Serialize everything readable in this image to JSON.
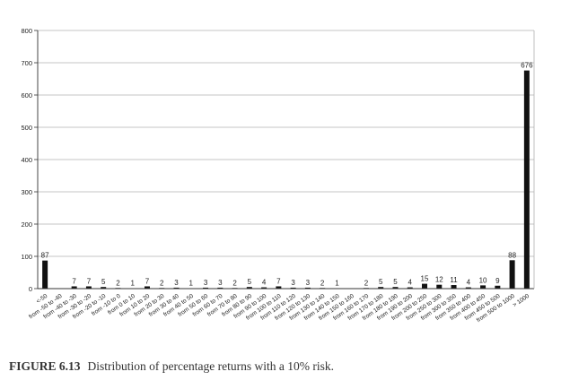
{
  "chart_data": {
    "type": "bar",
    "categories": [
      "<-50",
      "from -50 to -40",
      "from -40 to -30",
      "from -30 to -20",
      "from -20 to -10",
      "from -10 to 0",
      "from 0 to 10",
      "from 10 to 20",
      "from 20 to 30",
      "from 30 to 40",
      "from 40 to 50",
      "from 50 to 60",
      "from 60 to 70",
      "from 70 to 80",
      "from 80 to 90",
      "from 90 to 100",
      "from 100 to 110",
      "from 110 to 120",
      "from 120 to 130",
      "from 130 to 140",
      "from 140 to 150",
      "from 150 to 160",
      "from 160 to 170",
      "from 170 to 180",
      "from 180 to 190",
      "from 190 to 200",
      "from 200 to 250",
      "from 250 to 300",
      "from 300 to 350",
      "from 350 to 400",
      "from 400 to 450",
      "from 450 to 500",
      "from 500 to 1000",
      "> 1000"
    ],
    "values": [
      87,
      0,
      7,
      7,
      5,
      2,
      1,
      7,
      2,
      3,
      1,
      3,
      3,
      2,
      5,
      4,
      7,
      3,
      3,
      2,
      1,
      0,
      2,
      5,
      5,
      4,
      15,
      12,
      11,
      4,
      10,
      9,
      88,
      676
    ],
    "value_labels": [
      "87",
      "",
      "7",
      "7",
      "5",
      "2",
      "1",
      "7",
      "2",
      "3",
      "1",
      "3",
      "3",
      "2",
      "5",
      "4",
      "7",
      "3",
      "3",
      "2",
      "1",
      "",
      "2",
      "5",
      "5",
      "4",
      "15",
      "12",
      "11",
      "4",
      "10",
      "9",
      "88",
      "676"
    ],
    "ylim": [
      0,
      800
    ],
    "yticks": [
      0,
      100,
      200,
      300,
      400,
      500,
      600,
      700,
      800
    ],
    "grid": true,
    "bar_color": "#111111",
    "grid_color": "#b0b0b0"
  },
  "caption": {
    "label": "FIGURE 6.13",
    "text": "Distribution of percentage returns with a 10% risk."
  }
}
